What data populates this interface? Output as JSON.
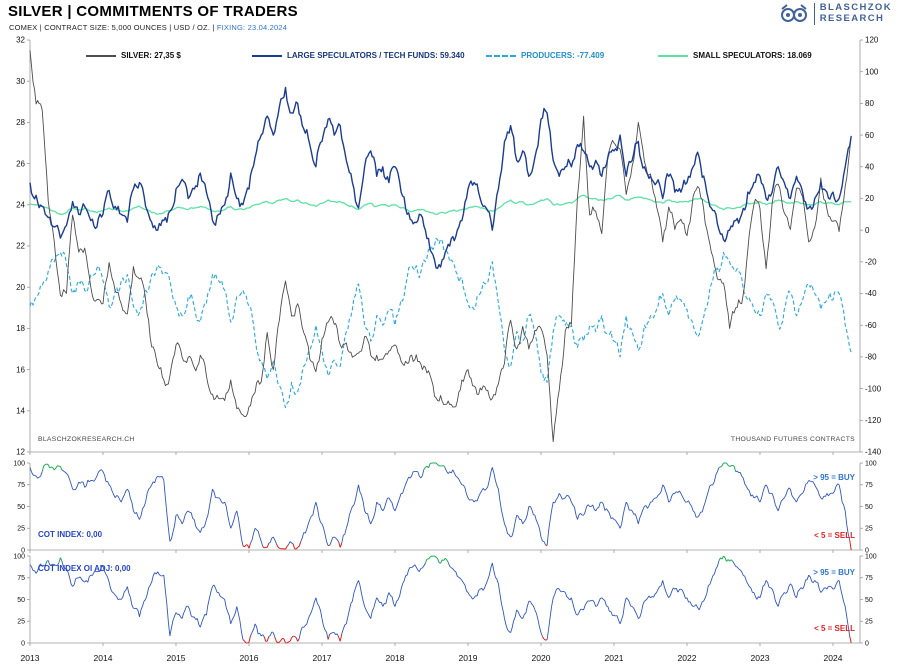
{
  "header": {
    "title": "SILVER | COMMITMENTS OF TRADERS",
    "subtitle_plain": "COMEX | CONTRACT SIZE: 5,000 OUNCES | USD / OZ. | ",
    "subtitle_fixing": "FIXING: 23.04.2024",
    "logo_line1": "BLASCHZOK",
    "logo_line2": "RESEARCH"
  },
  "legend": {
    "silver": "SILVER: 27,35 $",
    "large_specs": "LARGE SPECULATORS / TECH FUNDS: 59.340",
    "producers": "PRODUCERS: -77.409",
    "small_specs": "SMALL SPECULATORS: 18.069"
  },
  "footnotes": {
    "left": "BLASCHZOKRESEARCH.CH",
    "right": "THOUSAND FUTURES CONTRACTS"
  },
  "panels": {
    "cot_label": "COT INDEX: 0,00",
    "cot_oi_label": "COT INDEX OI ADJ: 0,00",
    "buy_note": "> 95 = BUY",
    "sell_note": "< 5 = SELL"
  },
  "colors": {
    "silver": "#4d4d4d",
    "large_specs": "#1b3d91",
    "producers": "#2aa8e0",
    "small_specs": "#5fe0a5",
    "cot_line": "#3056c8",
    "buy_green": "#1faf54",
    "sell_red": "#e02020",
    "accent_blue": "#2e75d4",
    "logo_blue": "#41629b"
  },
  "chart_data": [
    {
      "type": "line",
      "title": "SILVER | COMMITMENTS OF TRADERS",
      "x_start_year": 2013,
      "x_interval": "monthly",
      "x_ticks": [
        2013,
        2014,
        2015,
        2016,
        2017,
        2018,
        2019,
        2020,
        2021,
        2022,
        2023,
        2024
      ],
      "left_axis": {
        "label": "USD / OZ.",
        "range": [
          12,
          32
        ],
        "ticks": [
          12,
          14,
          16,
          18,
          20,
          22,
          24,
          26,
          28,
          30,
          32
        ]
      },
      "right_axis": {
        "label": "THOUSAND FUTURES CONTRACTS",
        "range": [
          -140,
          120
        ],
        "ticks": [
          -140,
          -120,
          -100,
          -80,
          -60,
          -40,
          -20,
          0,
          20,
          40,
          60,
          80,
          100,
          120
        ]
      },
      "series": [
        {
          "name": "SILVER",
          "axis": "left",
          "style": "solid",
          "color_key": "silver",
          "current": "27,35 $",
          "values": [
            31.5,
            28.9,
            28.6,
            24.2,
            22.2,
            19.6,
            19.7,
            23.5,
            21.7,
            21.9,
            20.0,
            19.4,
            19.2,
            21.2,
            19.8,
            19.2,
            18.7,
            21.0,
            20.4,
            19.4,
            17.1,
            16.2,
            15.5,
            15.7,
            17.2,
            16.6,
            16.6,
            16.1,
            16.7,
            15.7,
            14.8,
            14.6,
            14.5,
            15.5,
            14.1,
            13.8,
            14.2,
            14.9,
            15.4,
            17.8,
            16.0,
            18.4,
            20.3,
            18.6,
            19.2,
            17.8,
            16.5,
            15.9,
            17.5,
            18.3,
            18.2,
            17.2,
            17.3,
            16.6,
            16.8,
            17.6,
            16.7,
            16.7,
            16.5,
            16.9,
            17.2,
            16.4,
            16.3,
            16.4,
            16.4,
            16.1,
            15.5,
            14.5,
            14.3,
            14.3,
            14.2,
            15.5,
            16.0,
            15.2,
            15.1,
            15.0,
            14.6,
            15.3,
            16.3,
            18.4,
            17.0,
            18.1,
            17.0,
            17.9,
            18.0,
            16.7,
            12.5,
            15.0,
            17.9,
            18.2,
            24.4,
            28.3,
            23.5,
            23.7,
            22.6,
            26.4,
            27.0,
            26.7,
            24.5,
            25.9,
            28.0,
            26.1,
            25.5,
            23.9,
            22.2,
            23.9,
            22.8,
            23.3,
            22.5,
            24.4,
            24.8,
            23.1,
            21.7,
            20.4,
            20.2,
            18.0,
            19.0,
            19.2,
            21.8,
            24.0,
            23.8,
            20.9,
            24.1,
            25.0,
            23.6,
            22.8,
            24.8,
            24.4,
            22.2,
            22.9,
            25.3,
            23.8,
            23.2,
            22.7,
            24.9,
            27.35
          ]
        },
        {
          "name": "LARGE SPECULATORS / TECH FUNDS",
          "axis": "right",
          "style": "solid",
          "color_key": "large_specs",
          "current": 59.34,
          "values": [
            30,
            22,
            15,
            8,
            2,
            -5,
            3,
            18,
            10,
            15,
            6,
            2,
            10,
            25,
            15,
            10,
            5,
            26,
            30,
            15,
            5,
            0,
            6,
            12,
            26,
            32,
            20,
            26,
            36,
            24,
            6,
            10,
            16,
            36,
            20,
            16,
            26,
            46,
            60,
            72,
            60,
            78,
            90,
            74,
            80,
            64,
            54,
            40,
            56,
            70,
            60,
            66,
            44,
            30,
            14,
            40,
            50,
            34,
            40,
            30,
            40,
            24,
            10,
            4,
            10,
            0,
            -14,
            -24,
            -18,
            -10,
            -4,
            6,
            26,
            30,
            20,
            14,
            0,
            26,
            56,
            66,
            44,
            50,
            34,
            46,
            70,
            74,
            44,
            34,
            40,
            40,
            54,
            50,
            40,
            44,
            34,
            46,
            50,
            60,
            34,
            44,
            56,
            40,
            34,
            30,
            20,
            34,
            24,
            24,
            30,
            40,
            46,
            30,
            14,
            4,
            -6,
            0,
            6,
            10,
            24,
            30,
            34,
            20,
            24,
            40,
            30,
            20,
            34,
            24,
            14,
            20,
            30,
            24,
            24,
            20,
            40,
            59.34
          ]
        },
        {
          "name": "PRODUCERS",
          "axis": "right",
          "style": "dashed",
          "color_key": "producers",
          "current": -77.41,
          "values": [
            -48,
            -42,
            -35,
            -26,
            -20,
            -14,
            -22,
            -40,
            -32,
            -38,
            -28,
            -24,
            -32,
            -48,
            -38,
            -32,
            -28,
            -48,
            -52,
            -38,
            -28,
            -22,
            -28,
            -32,
            -48,
            -54,
            -42,
            -48,
            -58,
            -46,
            -28,
            -32,
            -38,
            -58,
            -42,
            -38,
            -48,
            -68,
            -82,
            -94,
            -82,
            -98,
            -112,
            -96,
            -102,
            -86,
            -76,
            -60,
            -76,
            -92,
            -82,
            -86,
            -64,
            -50,
            -34,
            -60,
            -70,
            -54,
            -60,
            -50,
            -60,
            -44,
            -30,
            -24,
            -30,
            -20,
            -10,
            -6,
            -12,
            -20,
            -26,
            -30,
            -46,
            -50,
            -40,
            -34,
            -20,
            -46,
            -76,
            -86,
            -64,
            -70,
            -54,
            -66,
            -90,
            -96,
            -64,
            -54,
            -60,
            -60,
            -74,
            -70,
            -60,
            -64,
            -54,
            -66,
            -70,
            -80,
            -54,
            -64,
            -76,
            -60,
            -54,
            -50,
            -40,
            -54,
            -44,
            -44,
            -50,
            -60,
            -66,
            -50,
            -34,
            -24,
            -14,
            -20,
            -26,
            -30,
            -44,
            -50,
            -54,
            -40,
            -44,
            -60,
            -50,
            -40,
            -54,
            -44,
            -34,
            -40,
            -50,
            -44,
            -44,
            -40,
            -60,
            -77.41
          ]
        },
        {
          "name": "SMALL SPECULATORS",
          "axis": "right",
          "style": "solid",
          "color_key": "small_specs",
          "current": 18.07,
          "values": [
            17,
            16,
            15,
            14,
            12,
            10,
            11,
            14,
            13,
            14,
            12,
            11,
            12,
            14,
            13,
            12,
            12,
            14,
            15,
            13,
            11,
            10,
            11,
            12,
            14,
            14,
            13,
            14,
            15,
            14,
            12,
            12,
            13,
            15,
            13,
            13,
            14,
            16,
            17,
            18,
            17,
            19,
            20,
            18,
            19,
            17,
            16,
            15,
            17,
            19,
            18,
            18,
            16,
            15,
            13,
            16,
            17,
            15,
            16,
            15,
            16,
            14,
            13,
            12,
            13,
            12,
            11,
            10,
            11,
            12,
            12,
            13,
            14,
            15,
            14,
            13,
            12,
            14,
            17,
            19,
            17,
            18,
            16,
            17,
            19,
            20,
            16,
            16,
            17,
            17,
            20,
            22,
            20,
            20,
            19,
            20,
            21,
            22,
            19,
            20,
            21,
            20,
            19,
            18,
            17,
            19,
            18,
            18,
            18,
            19,
            20,
            18,
            16,
            15,
            13,
            14,
            14,
            15,
            17,
            17,
            18,
            16,
            17,
            19,
            18,
            17,
            18,
            17,
            16,
            16,
            18,
            17,
            17,
            16,
            18,
            18.07
          ]
        }
      ]
    },
    {
      "type": "line",
      "title": "COT INDEX",
      "current_value": "0,00",
      "y_range": [
        0,
        100
      ],
      "y_ticks": [
        0,
        25,
        50,
        75,
        100
      ],
      "thresholds": {
        "buy_above": 95,
        "sell_below": 5
      },
      "values": [
        95,
        85,
        90,
        98,
        92,
        96,
        88,
        70,
        78,
        72,
        80,
        85,
        90,
        75,
        60,
        55,
        70,
        45,
        35,
        55,
        75,
        85,
        80,
        10,
        40,
        30,
        45,
        35,
        20,
        35,
        70,
        60,
        55,
        25,
        45,
        5,
        2,
        25,
        10,
        3,
        15,
        2,
        1,
        8,
        3,
        20,
        35,
        55,
        30,
        5,
        15,
        3,
        25,
        50,
        75,
        45,
        30,
        55,
        45,
        60,
        45,
        65,
        80,
        90,
        85,
        95,
        100,
        98,
        97,
        90,
        85,
        75,
        60,
        55,
        65,
        70,
        95,
        70,
        30,
        15,
        40,
        30,
        50,
        40,
        15,
        5,
        55,
        65,
        60,
        55,
        35,
        40,
        50,
        45,
        55,
        45,
        35,
        25,
        55,
        45,
        30,
        50,
        55,
        60,
        75,
        55,
        65,
        65,
        55,
        45,
        40,
        55,
        75,
        90,
        100,
        96,
        90,
        85,
        70,
        60,
        55,
        75,
        65,
        45,
        60,
        70,
        55,
        65,
        80,
        75,
        60,
        65,
        65,
        75,
        45,
        0
      ]
    },
    {
      "type": "line",
      "title": "COT INDEX OI ADJ",
      "current_value": "0,00",
      "y_range": [
        0,
        100
      ],
      "y_ticks": [
        0,
        25,
        50,
        75,
        100
      ],
      "thresholds": {
        "buy_above": 95,
        "sell_below": 5
      },
      "values": [
        90,
        80,
        88,
        95,
        90,
        98,
        85,
        65,
        75,
        70,
        78,
        82,
        88,
        70,
        55,
        50,
        65,
        40,
        30,
        50,
        70,
        82,
        78,
        8,
        35,
        28,
        42,
        30,
        18,
        32,
        65,
        58,
        50,
        22,
        42,
        4,
        1,
        22,
        8,
        2,
        12,
        1,
        0,
        6,
        2,
        18,
        32,
        52,
        28,
        4,
        12,
        2,
        22,
        48,
        72,
        42,
        28,
        52,
        42,
        58,
        42,
        62,
        78,
        88,
        82,
        92,
        100,
        97,
        95,
        88,
        82,
        72,
        58,
        52,
        62,
        68,
        92,
        68,
        28,
        12,
        38,
        28,
        48,
        38,
        12,
        4,
        52,
        62,
        58,
        52,
        32,
        38,
        48,
        42,
        52,
        42,
        32,
        22,
        52,
        42,
        28,
        48,
        52,
        58,
        72,
        52,
        62,
        62,
        52,
        42,
        38,
        52,
        72,
        88,
        100,
        94,
        88,
        82,
        68,
        58,
        52,
        72,
        62,
        42,
        58,
        68,
        52,
        62,
        78,
        72,
        58,
        62,
        62,
        72,
        42,
        0
      ]
    }
  ]
}
